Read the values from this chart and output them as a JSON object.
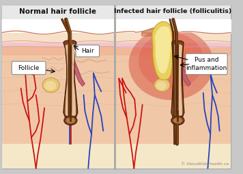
{
  "bg_color": "#c8c8c8",
  "title_left": "Normal hair follicle",
  "title_right": "Infected hair follicle (folliculitis)",
  "hair_color": "#5c2d0a",
  "hair_highlight": "#8b5a2b",
  "follicle_label": "Follicle",
  "hair_label": "Hair",
  "pus_label": "Pus and\ninflammation",
  "pus_color": "#e8d060",
  "pus_light": "#f5e898",
  "inflammation_red": "#cc3322",
  "inflammation_orange": "#d86030",
  "red_vessel": "#cc1111",
  "blue_vessel": "#2244bb",
  "muscle_color": "#c06070",
  "muscle_dark": "#a04050",
  "sebaceous_color": "#e8c878",
  "sebaceous_edge": "#c8a040",
  "copyright": "© AboutKidsHealth.ca",
  "border_color": "#aaaaaa",
  "skin_outline": "#c07858",
  "skin_deep": "#f0c8a8",
  "skin_mid": "#f5d5b8",
  "skin_epi": "#f8dfc8",
  "skin_pink": "#f0c8d0",
  "skin_top": "#fce8d8",
  "skin_fat": "#f5e8c8",
  "follicle_sheath": "#7b4520",
  "follicle_inner": "#b87848",
  "follicle_bg": "#e8c0a0",
  "white": "#ffffff",
  "title_bg": "#e8e8e8"
}
